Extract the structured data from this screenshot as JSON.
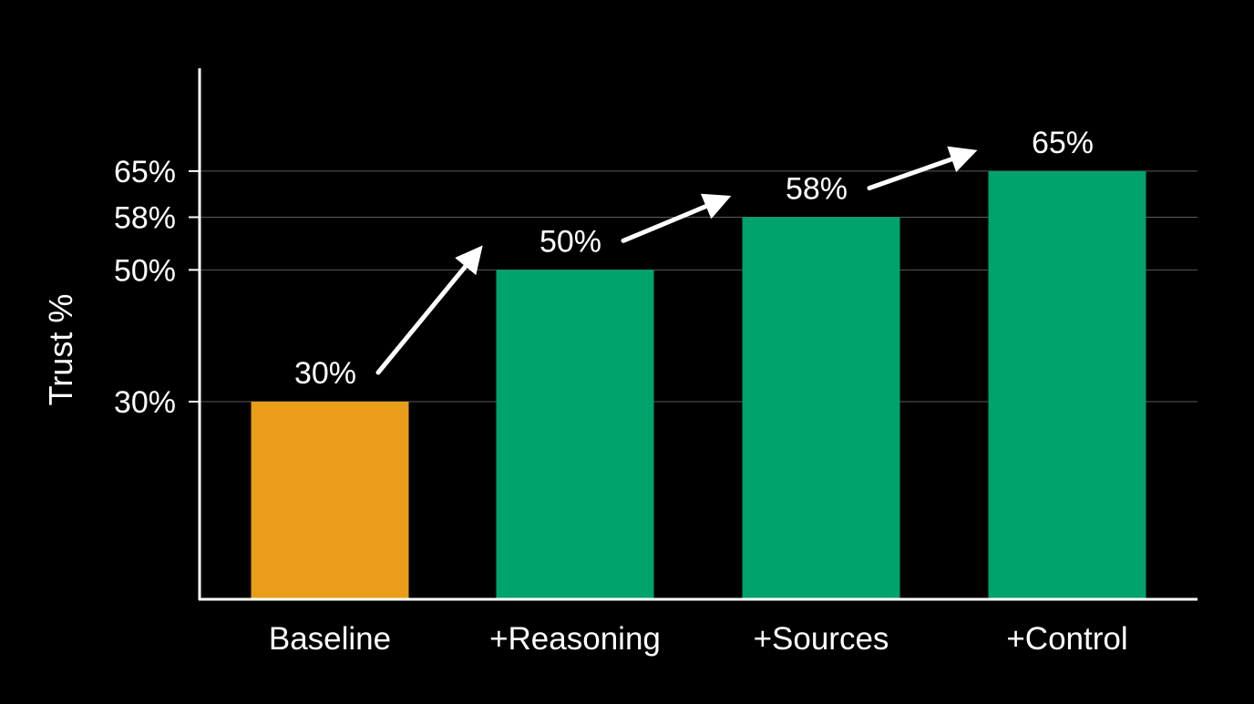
{
  "chart_data": {
    "type": "bar",
    "title": "",
    "xlabel": "",
    "ylabel": "Trust %",
    "categories": [
      "Baseline",
      "+Reasoning",
      "+Sources",
      "+Control"
    ],
    "values": [
      30,
      50,
      58,
      65
    ],
    "data_labels": [
      "30%",
      "50%",
      "58%",
      "65%"
    ],
    "y_ticks": [
      30,
      50,
      58,
      65
    ],
    "y_tick_labels": [
      "30%",
      "50%",
      "58%",
      "65%"
    ],
    "ylim": [
      0,
      76
    ],
    "grid": true,
    "arrows_between_bars": true,
    "colors": {
      "background": "#000000",
      "baseline_bar": "#E99D18",
      "improved_bar": "#00A36C",
      "axis": "#ffffff",
      "grid": "#5a5a5a",
      "text": "#ffffff",
      "arrow": "#ffffff"
    }
  }
}
